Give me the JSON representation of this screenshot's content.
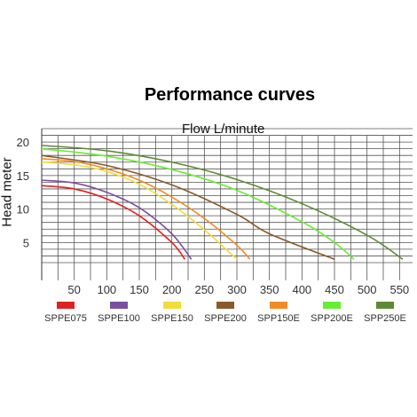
{
  "chart_data": {
    "type": "line",
    "title": "Performance curves",
    "xlabel": "Flow L/minute",
    "ylabel": "Head meter",
    "xlim": [
      0,
      570
    ],
    "ylim": [
      2,
      22
    ],
    "x_ticks": [
      50,
      100,
      150,
      200,
      250,
      300,
      350,
      400,
      450,
      500,
      550
    ],
    "y_ticks": [
      5,
      10,
      15,
      20
    ],
    "grid": true,
    "legend_position": "bottom",
    "series": [
      {
        "name": "SPPE075",
        "color": "#dd2222",
        "x": [
          0,
          50,
          100,
          150,
          200,
          220
        ],
        "y": [
          13.5,
          13.0,
          11.5,
          9.0,
          5.0,
          2.5
        ]
      },
      {
        "name": "SPPE100",
        "color": "#7a4fa0",
        "x": [
          0,
          50,
          100,
          150,
          200,
          230
        ],
        "y": [
          14.3,
          13.9,
          12.5,
          10.2,
          6.3,
          2.5
        ]
      },
      {
        "name": "SPPE150",
        "color": "#f2dc3c",
        "x": [
          0,
          50,
          100,
          150,
          200,
          250,
          300
        ],
        "y": [
          17.0,
          16.6,
          15.6,
          13.7,
          10.7,
          6.9,
          2.5
        ]
      },
      {
        "name": "SPPE200",
        "color": "#8a5a2b",
        "x": [
          0,
          100,
          200,
          300,
          350,
          450
        ],
        "y": [
          18.0,
          16.5,
          13.6,
          9.2,
          6.3,
          2.5
        ]
      },
      {
        "name": "SPP150E",
        "color": "#f08c28",
        "x": [
          0,
          50,
          100,
          150,
          200,
          250,
          300,
          320
        ],
        "y": [
          17.5,
          17.1,
          16.0,
          14.3,
          11.8,
          8.6,
          4.6,
          2.5
        ]
      },
      {
        "name": "SPP200E",
        "color": "#66ee33",
        "x": [
          0,
          100,
          200,
          300,
          400,
          450,
          480
        ],
        "y": [
          19.0,
          17.9,
          15.9,
          12.8,
          8.1,
          5.0,
          2.5
        ]
      },
      {
        "name": "SPP250E",
        "color": "#5f8a35",
        "x": [
          0,
          100,
          200,
          300,
          400,
          500,
          555
        ],
        "y": [
          19.5,
          18.7,
          17.0,
          14.4,
          10.8,
          6.1,
          2.5
        ]
      }
    ]
  }
}
